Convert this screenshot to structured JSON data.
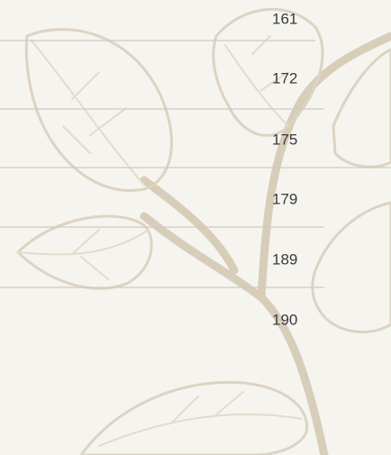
{
  "page_numbers": [
    161,
    172,
    175,
    179,
    189,
    190
  ]
}
